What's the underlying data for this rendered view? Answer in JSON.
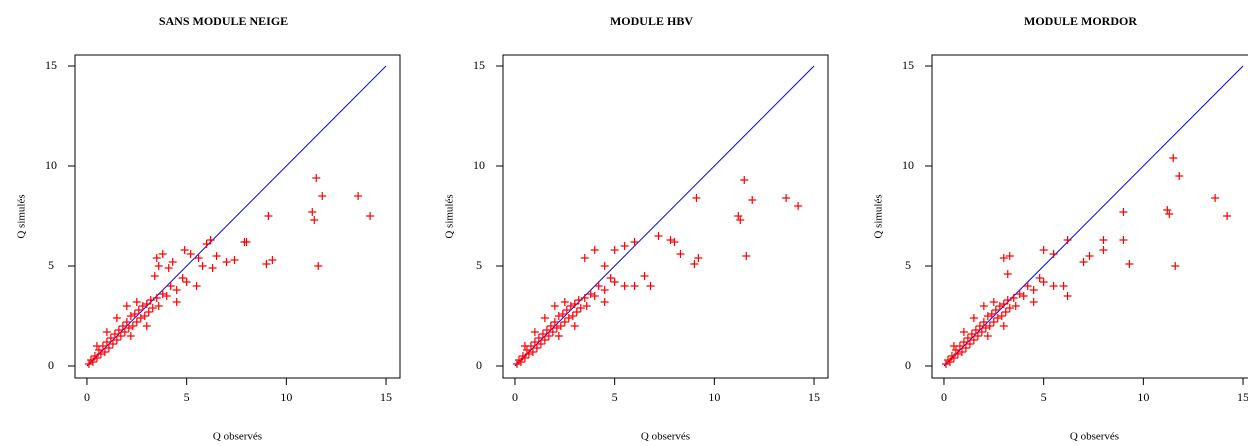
{
  "chart_data": [
    {
      "type": "scatter",
      "title": "SANS MODULE NEIGE",
      "xlabel": "Q observés",
      "ylabel": "Q simulés",
      "xlim": [
        -0.6,
        15.7
      ],
      "ylim": [
        -0.6,
        15.55
      ],
      "xticks": [
        0,
        5,
        10,
        15
      ],
      "yticks": [
        0,
        5,
        10,
        15
      ],
      "series": [
        {
          "color": "#ff0000",
          "x": [
            0.1,
            0.2,
            0.3,
            0.4,
            0.5,
            0.6,
            0.7,
            0.8,
            0.9,
            1.0,
            1.1,
            1.2,
            1.3,
            1.4,
            1.5,
            1.6,
            1.7,
            1.8,
            1.9,
            2.0,
            2.1,
            2.2,
            2.3,
            2.4,
            2.5,
            2.6,
            2.7,
            2.8,
            2.9,
            3.0,
            3.1,
            3.2,
            3.3,
            3.5,
            3.6,
            3.8,
            4.0,
            4.2,
            4.5,
            4.8,
            5.0,
            1.0,
            2.0,
            2.5,
            0.5,
            1.5,
            3.0,
            2.2,
            4.5,
            5.5,
            3.4,
            3.6,
            3.5,
            3.8,
            4.1,
            4.3,
            4.9,
            5.2,
            5.6,
            6.0,
            6.2,
            5.8,
            6.3,
            6.5,
            7.0,
            7.4,
            7.9,
            8.0,
            9.1,
            9.0,
            9.3,
            11.3,
            11.4,
            11.5,
            11.8,
            11.6,
            13.6,
            14.2
          ],
          "values": [
            0.1,
            0.3,
            0.2,
            0.5,
            0.4,
            0.8,
            0.6,
            1.0,
            0.7,
            1.2,
            0.9,
            1.4,
            1.1,
            1.6,
            1.3,
            1.8,
            1.5,
            2.0,
            1.7,
            2.2,
            1.9,
            2.5,
            2.0,
            2.6,
            2.2,
            2.8,
            2.4,
            3.0,
            2.5,
            3.1,
            2.7,
            3.3,
            2.9,
            3.4,
            3.0,
            3.6,
            3.5,
            4.0,
            3.8,
            4.4,
            4.2,
            1.7,
            3.0,
            3.2,
            1.0,
            2.4,
            2.0,
            1.5,
            3.2,
            4.0,
            4.5,
            5.0,
            5.4,
            5.6,
            4.9,
            5.2,
            5.8,
            5.6,
            5.4,
            6.1,
            6.3,
            5.0,
            4.9,
            5.5,
            5.2,
            5.3,
            6.2,
            6.2,
            7.5,
            5.1,
            5.3,
            7.7,
            7.3,
            9.4,
            8.5,
            5.0,
            8.5,
            7.5
          ]
        }
      ],
      "reference_line": {
        "color": "#0000ff",
        "x": [
          0,
          15
        ],
        "values": [
          0,
          15
        ]
      }
    },
    {
      "type": "scatter",
      "title": "MODULE HBV",
      "xlabel": "Q observés",
      "ylabel": "Q simulés",
      "xlim": [
        -0.6,
        15.7
      ],
      "ylim": [
        -0.6,
        15.55
      ],
      "xticks": [
        0,
        5,
        10,
        15
      ],
      "yticks": [
        0,
        5,
        10,
        15
      ],
      "series": [
        {
          "color": "#ff0000",
          "x": [
            0.1,
            0.2,
            0.3,
            0.4,
            0.5,
            0.6,
            0.7,
            0.8,
            0.9,
            1.0,
            1.1,
            1.2,
            1.3,
            1.4,
            1.5,
            1.6,
            1.7,
            1.8,
            1.9,
            2.0,
            2.1,
            2.2,
            2.3,
            2.4,
            2.5,
            2.6,
            2.7,
            2.8,
            2.9,
            3.0,
            3.1,
            3.2,
            3.3,
            3.5,
            3.6,
            3.8,
            4.0,
            4.2,
            4.5,
            4.8,
            5.0,
            1.0,
            2.0,
            2.5,
            0.5,
            1.5,
            3.0,
            2.2,
            4.5,
            5.5,
            3.5,
            4.0,
            4.5,
            5.0,
            5.5,
            6.0,
            6.0,
            6.5,
            6.8,
            7.2,
            7.8,
            8.0,
            8.3,
            9.0,
            9.2,
            9.1,
            11.2,
            11.3,
            11.5,
            11.6,
            11.9,
            13.6,
            14.2
          ],
          "values": [
            0.1,
            0.3,
            0.2,
            0.5,
            0.4,
            0.8,
            0.6,
            1.0,
            0.7,
            1.2,
            0.9,
            1.4,
            1.1,
            1.6,
            1.3,
            1.8,
            1.5,
            2.0,
            1.7,
            2.2,
            1.9,
            2.5,
            2.0,
            2.6,
            2.2,
            2.8,
            2.4,
            3.0,
            2.5,
            3.1,
            2.7,
            3.3,
            2.9,
            3.4,
            3.0,
            3.6,
            3.5,
            4.0,
            3.8,
            4.4,
            4.2,
            1.7,
            3.0,
            3.2,
            1.0,
            2.4,
            2.0,
            1.5,
            3.2,
            4.0,
            5.4,
            5.8,
            5.0,
            5.8,
            6.0,
            6.2,
            4.0,
            4.5,
            4.0,
            6.5,
            6.3,
            6.2,
            5.6,
            5.1,
            5.4,
            8.4,
            7.5,
            7.3,
            9.3,
            5.5,
            8.3,
            8.4,
            8.0
          ]
        }
      ],
      "reference_line": {
        "color": "#0000ff",
        "x": [
          0,
          15
        ],
        "values": [
          0,
          15
        ]
      }
    },
    {
      "type": "scatter",
      "title": "MODULE MORDOR",
      "xlabel": "Q observés",
      "ylabel": "Q simulés",
      "xlim": [
        -0.6,
        15.7
      ],
      "ylim": [
        -0.6,
        15.55
      ],
      "xticks": [
        0,
        5,
        10,
        15
      ],
      "yticks": [
        0,
        5,
        10,
        15
      ],
      "series": [
        {
          "color": "#ff0000",
          "x": [
            0.1,
            0.2,
            0.3,
            0.4,
            0.5,
            0.6,
            0.7,
            0.8,
            0.9,
            1.0,
            1.1,
            1.2,
            1.3,
            1.4,
            1.5,
            1.6,
            1.7,
            1.8,
            1.9,
            2.0,
            2.1,
            2.2,
            2.3,
            2.4,
            2.5,
            2.6,
            2.7,
            2.8,
            2.9,
            3.0,
            3.1,
            3.2,
            3.3,
            3.5,
            3.6,
            3.8,
            4.0,
            4.2,
            4.5,
            4.8,
            5.0,
            1.0,
            2.0,
            2.5,
            0.5,
            1.5,
            3.0,
            2.2,
            4.5,
            5.5,
            3.0,
            3.3,
            3.2,
            5.0,
            5.5,
            6.0,
            6.2,
            6.2,
            7.0,
            7.3,
            8.0,
            8.0,
            9.0,
            9.0,
            9.3,
            11.2,
            11.3,
            11.5,
            11.8,
            11.6,
            13.6,
            14.2
          ],
          "values": [
            0.1,
            0.3,
            0.2,
            0.5,
            0.4,
            0.8,
            0.6,
            1.0,
            0.7,
            1.2,
            0.9,
            1.4,
            1.1,
            1.6,
            1.3,
            1.8,
            1.5,
            2.0,
            1.7,
            2.2,
            1.9,
            2.5,
            2.0,
            2.6,
            2.2,
            2.8,
            2.4,
            3.0,
            2.5,
            3.1,
            2.7,
            3.3,
            2.9,
            3.4,
            3.0,
            3.6,
            3.5,
            4.0,
            3.8,
            4.4,
            4.2,
            1.7,
            3.0,
            3.2,
            1.0,
            2.4,
            2.0,
            1.5,
            3.2,
            4.0,
            5.4,
            5.5,
            4.6,
            5.8,
            5.6,
            4.0,
            3.5,
            6.3,
            5.2,
            5.5,
            6.3,
            5.8,
            7.7,
            6.3,
            5.1,
            7.8,
            7.6,
            10.4,
            9.5,
            5.0,
            8.4,
            7.5
          ]
        }
      ],
      "reference_line": {
        "color": "#0000ff",
        "x": [
          0,
          15
        ],
        "values": [
          0,
          15
        ]
      }
    }
  ]
}
